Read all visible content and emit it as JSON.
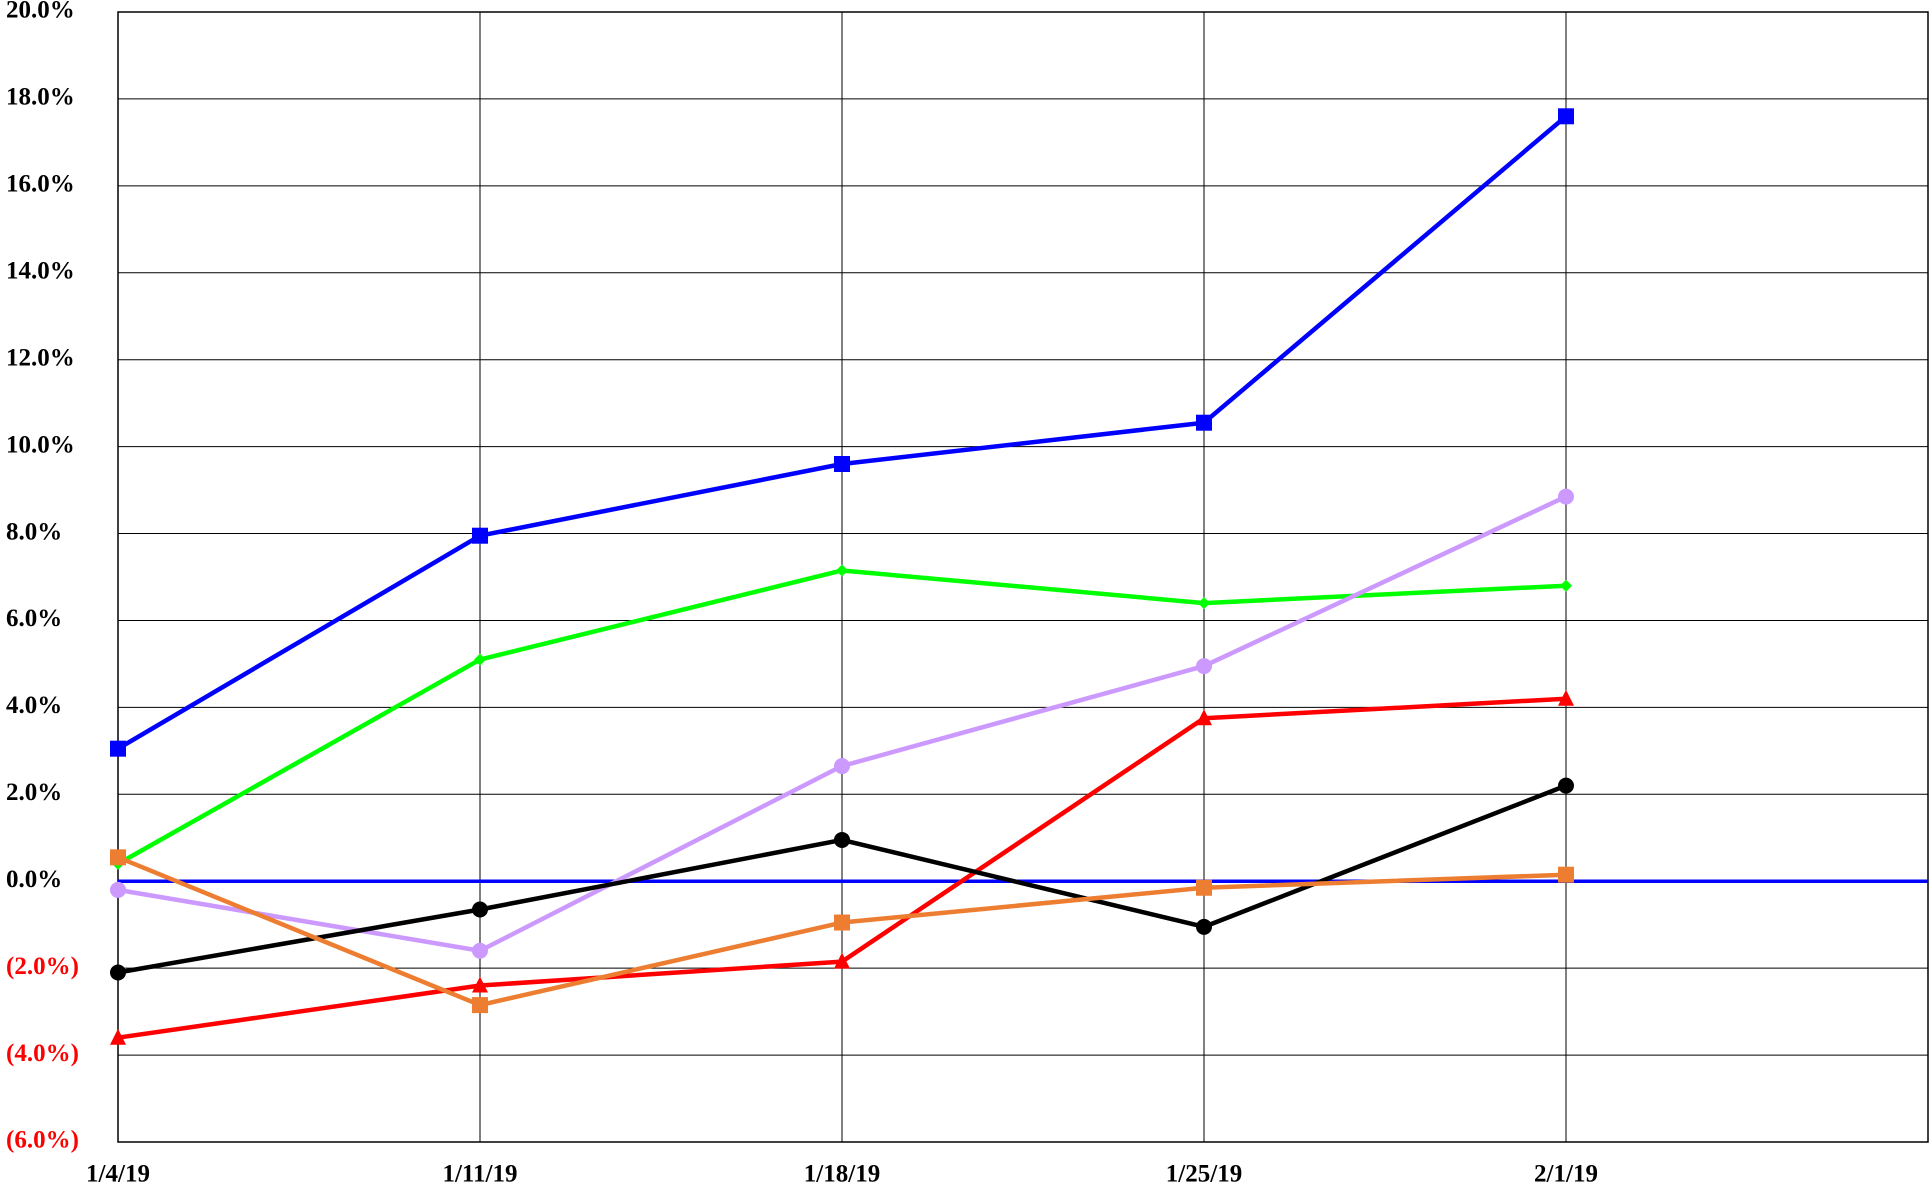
{
  "chart_data": {
    "type": "line",
    "categories": [
      "1/4/19",
      "1/11/19",
      "1/18/19",
      "1/25/19",
      "2/1/19",
      null
    ],
    "series": [
      {
        "color": "#0000ff",
        "marker": "square",
        "values": [
          3.05,
          7.95,
          9.6,
          10.55,
          17.6,
          null
        ]
      },
      {
        "color": "#00ff00",
        "marker": "diamond",
        "values": [
          0.4,
          5.1,
          7.15,
          6.4,
          6.8,
          null
        ]
      },
      {
        "color": "#cc99ff",
        "marker": "circle",
        "values": [
          -0.2,
          -1.6,
          2.65,
          4.95,
          8.85,
          null
        ]
      },
      {
        "color": "#ff0000",
        "marker": "triangle",
        "values": [
          -3.6,
          -2.4,
          -1.85,
          3.75,
          4.2,
          null
        ]
      },
      {
        "color": "#000000",
        "marker": "circle",
        "values": [
          -2.1,
          -0.65,
          0.95,
          -1.05,
          2.2,
          null
        ]
      },
      {
        "color": "#ed7d31",
        "marker": "square",
        "values": [
          0.55,
          -2.85,
          -0.95,
          -0.15,
          0.15,
          null
        ]
      }
    ],
    "ylim": [
      -6,
      20
    ],
    "yticks": [
      {
        "value": -6,
        "label": "(6.0%)"
      },
      {
        "value": -4,
        "label": "(4.0%)"
      },
      {
        "value": -2,
        "label": "(2.0%)"
      },
      {
        "value": 0,
        "label": "0.0%"
      },
      {
        "value": 2,
        "label": "2.0%"
      },
      {
        "value": 4,
        "label": "4.0%"
      },
      {
        "value": 6,
        "label": "6.0%"
      },
      {
        "value": 8,
        "label": "8.0%"
      },
      {
        "value": 10,
        "label": "10.0%"
      },
      {
        "value": 12,
        "label": "12.0%"
      },
      {
        "value": 14,
        "label": "14.0%"
      },
      {
        "value": 16,
        "label": "16.0%"
      },
      {
        "value": 18,
        "label": "18.0%"
      },
      {
        "value": 20,
        "label": "20.0%"
      }
    ],
    "negative_label_color": "#ff0000",
    "zero_line_color": "#0000ff",
    "grid": true
  }
}
